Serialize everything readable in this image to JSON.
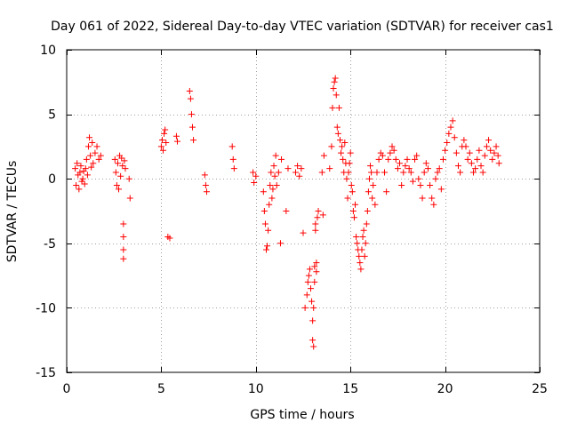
{
  "colors": {
    "series": "#ff0000",
    "axis": "#000000",
    "grid": "#a0a0a0",
    "background": "#ffffff"
  },
  "chart_data": {
    "type": "scatter",
    "title": "Day 061 of 2022, Sidereal Day-to-day VTEC variation (SDTVAR) for receiver cas1",
    "xlabel": "GPS time / hours",
    "ylabel": "SDTVAR / TECUs",
    "xlim": [
      0,
      25
    ],
    "ylim": [
      -15,
      10
    ],
    "grid": true,
    "marker": "+",
    "x_ticks": [
      0,
      5,
      10,
      15,
      20,
      25
    ],
    "y_ticks": [
      -15,
      -10,
      -5,
      0,
      5,
      10
    ],
    "x_tick_labels": [
      "0",
      "5",
      "10",
      "15",
      "20",
      "25"
    ],
    "y_tick_labels": [
      "-15",
      "-10",
      "-5",
      "0",
      "5",
      "10"
    ],
    "series": [
      {
        "name": "SDTVAR",
        "x": [
          0.45,
          0.5,
          0.55,
          0.6,
          0.65,
          0.7,
          0.75,
          0.8,
          0.85,
          0.9,
          0.95,
          1.0,
          1.05,
          1.1,
          1.15,
          1.2,
          1.25,
          1.3,
          1.35,
          1.4,
          1.5,
          1.6,
          1.7,
          1.8,
          2.55,
          2.6,
          2.65,
          2.7,
          2.75,
          2.8,
          2.85,
          2.9,
          2.95,
          3.0,
          3.0,
          3.0,
          3.0,
          3.05,
          3.1,
          3.3,
          3.35,
          5.0,
          5.05,
          5.1,
          5.15,
          5.2,
          5.25,
          5.35,
          5.45,
          5.8,
          5.85,
          6.5,
          6.55,
          6.6,
          6.65,
          6.7,
          7.3,
          7.35,
          7.4,
          8.75,
          8.8,
          8.85,
          9.85,
          9.9,
          10.0,
          10.4,
          10.45,
          10.5,
          10.55,
          10.6,
          10.65,
          10.7,
          10.75,
          10.8,
          10.85,
          10.9,
          10.95,
          11.0,
          11.05,
          11.1,
          11.2,
          11.3,
          11.35,
          11.6,
          11.7,
          12.1,
          12.2,
          12.3,
          12.4,
          12.5,
          12.6,
          12.7,
          12.75,
          12.8,
          12.85,
          12.9,
          12.95,
          13.0,
          13.0,
          13.05,
          13.05,
          13.1,
          13.1,
          13.15,
          13.15,
          13.2,
          13.2,
          13.25,
          13.3,
          13.5,
          13.55,
          13.6,
          13.9,
          14.0,
          14.05,
          14.1,
          14.15,
          14.2,
          14.25,
          14.3,
          14.35,
          14.4,
          14.45,
          14.5,
          14.55,
          14.6,
          14.65,
          14.7,
          14.75,
          14.8,
          14.85,
          14.9,
          14.95,
          15.0,
          15.05,
          15.1,
          15.15,
          15.2,
          15.25,
          15.3,
          15.35,
          15.4,
          15.45,
          15.5,
          15.55,
          15.6,
          15.65,
          15.7,
          15.75,
          15.8,
          15.85,
          15.9,
          15.95,
          16.0,
          16.05,
          16.1,
          16.15,
          16.2,
          16.3,
          16.4,
          16.5,
          16.6,
          16.7,
          16.8,
          16.9,
          17.0,
          17.1,
          17.2,
          17.3,
          17.4,
          17.5,
          17.6,
          17.7,
          17.8,
          17.9,
          18.0,
          18.1,
          18.2,
          18.3,
          18.4,
          18.5,
          18.6,
          18.7,
          18.8,
          18.9,
          19.0,
          19.1,
          19.2,
          19.3,
          19.4,
          19.5,
          19.6,
          19.7,
          19.8,
          19.9,
          20.0,
          20.1,
          20.2,
          20.3,
          20.4,
          20.5,
          20.6,
          20.7,
          20.8,
          20.9,
          21.0,
          21.1,
          21.2,
          21.3,
          21.4,
          21.5,
          21.6,
          21.7,
          21.8,
          21.9,
          22.0,
          22.1,
          22.2,
          22.3,
          22.4,
          22.5,
          22.6,
          22.7,
          22.8,
          22.85
        ],
        "y": [
          0.8,
          -0.5,
          1.2,
          0.3,
          -0.8,
          0.5,
          1.0,
          -0.2,
          0.0,
          0.6,
          -0.4,
          0.8,
          1.5,
          0.3,
          2.5,
          3.2,
          1.8,
          0.9,
          2.8,
          1.2,
          2.0,
          2.5,
          1.5,
          1.8,
          1.5,
          0.5,
          -0.5,
          1.2,
          -0.8,
          1.8,
          0.2,
          1.6,
          1.0,
          -3.5,
          -4.5,
          -5.5,
          -6.2,
          1.4,
          0.8,
          0.0,
          -1.5,
          2.5,
          3.0,
          2.2,
          3.5,
          3.8,
          2.8,
          -4.5,
          -4.6,
          3.3,
          2.9,
          6.8,
          6.2,
          5.0,
          4.0,
          3.0,
          0.3,
          -0.5,
          -1.0,
          2.5,
          1.5,
          0.8,
          0.5,
          -0.3,
          0.2,
          -1.0,
          -2.5,
          -3.5,
          -5.5,
          -5.2,
          -4.0,
          -2.0,
          -0.5,
          0.5,
          -1.5,
          -0.8,
          1.0,
          0.2,
          1.8,
          -0.5,
          0.5,
          -5.0,
          1.5,
          -2.5,
          0.8,
          0.5,
          1.0,
          0.2,
          0.8,
          -4.2,
          -10.0,
          -9.0,
          -8.0,
          -7.5,
          -7.0,
          -8.5,
          -9.5,
          -12.5,
          -11.0,
          -10.0,
          -13.0,
          -6.8,
          -8.0,
          -3.5,
          -4.0,
          -6.5,
          -7.2,
          -3.0,
          -2.5,
          0.5,
          -2.8,
          1.8,
          0.8,
          2.5,
          5.5,
          7.0,
          7.5,
          7.8,
          6.5,
          4.0,
          3.5,
          5.5,
          3.0,
          2.0,
          2.5,
          1.5,
          0.5,
          2.8,
          1.2,
          0.0,
          -1.5,
          0.5,
          1.2,
          2.0,
          -0.5,
          -1.0,
          -2.5,
          -3.0,
          -2.0,
          -4.5,
          -5.0,
          -5.5,
          -6.0,
          -6.5,
          -7.0,
          -5.5,
          -4.5,
          -4.0,
          -6.0,
          -5.0,
          -3.5,
          -2.5,
          -1.0,
          0.0,
          1.0,
          0.5,
          -1.5,
          -0.5,
          -2.0,
          0.5,
          1.5,
          2.0,
          1.8,
          0.5,
          -1.0,
          1.5,
          2.0,
          2.5,
          2.2,
          1.5,
          0.8,
          1.2,
          -0.5,
          0.5,
          1.0,
          1.5,
          0.8,
          0.5,
          -0.2,
          1.5,
          1.8,
          0.0,
          -0.5,
          -1.5,
          0.5,
          1.2,
          0.8,
          -0.5,
          -1.5,
          -2.0,
          0.0,
          0.5,
          0.8,
          -0.8,
          1.5,
          2.2,
          2.8,
          3.5,
          4.0,
          4.5,
          3.2,
          2.0,
          1.0,
          0.5,
          2.5,
          3.0,
          2.5,
          1.5,
          2.0,
          1.2,
          0.5,
          0.8,
          1.5,
          2.2,
          1.0,
          0.5,
          1.8,
          2.5,
          3.0,
          2.2,
          1.5,
          2.0,
          2.5,
          1.8,
          1.2
        ]
      }
    ]
  }
}
